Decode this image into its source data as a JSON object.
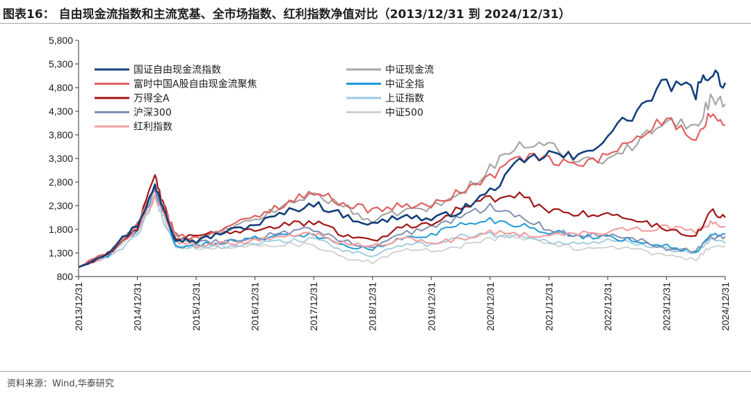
{
  "header": {
    "title": "图表16： 自由现金流指数和主流宽基、全市场指数、红利指数净值对比（2013/12/31 到 2024/12/31）"
  },
  "footer": {
    "source": "资料来源：Wind,华泰研究"
  },
  "chart_data": {
    "type": "line",
    "title": "图表16： 自由现金流指数和主流宽基、全市场指数、红利指数净值对比（2013/12/31 到 2024/12/31）",
    "xlabel": "",
    "ylabel": "",
    "ylim": [
      800,
      5800
    ],
    "yticks": [
      800,
      1300,
      1800,
      2300,
      2800,
      3300,
      3800,
      4300,
      4800,
      5300,
      5800
    ],
    "ytick_labels": [
      "800",
      "1,300",
      "1,800",
      "2,300",
      "2,800",
      "3,300",
      "3,800",
      "4,300",
      "4,800",
      "5,300",
      "5,800"
    ],
    "x_categories": [
      "2013/12/31",
      "2014/12/31",
      "2015/12/31",
      "2016/12/31",
      "2017/12/31",
      "2018/12/31",
      "2019/12/31",
      "2020/12/31",
      "2021/12/31",
      "2022/12/31",
      "2023/12/31",
      "2024/12/31"
    ],
    "x": [
      2014.0,
      2014.5,
      2015.0,
      2015.3,
      2015.45,
      2015.65,
      2016.0,
      2016.5,
      2017.0,
      2017.5,
      2018.0,
      2018.5,
      2019.0,
      2019.5,
      2020.0,
      2020.5,
      2021.0,
      2021.5,
      2022.0,
      2022.5,
      2023.0,
      2023.5,
      2024.0,
      2024.5,
      2024.75,
      2025.0
    ],
    "legend_position": "top-left",
    "series": [
      {
        "name": "国证自由现金流指数",
        "color": "#123f7a",
        "width": 2.6,
        "values": [
          1000,
          1320,
          1900,
          2700,
          2250,
          1600,
          1550,
          1750,
          1900,
          2150,
          2350,
          2100,
          1900,
          2100,
          2000,
          2200,
          2600,
          3200,
          3400,
          3300,
          3800,
          4300,
          4900,
          4700,
          5150,
          4900
        ]
      },
      {
        "name": "中证现金流",
        "color": "#a6a6a6",
        "width": 2.2,
        "values": [
          1000,
          1300,
          1900,
          2650,
          2200,
          1650,
          1550,
          1780,
          2000,
          2300,
          2550,
          2300,
          1950,
          2200,
          2250,
          2550,
          3100,
          3600,
          3550,
          3300,
          3300,
          3600,
          4200,
          3900,
          4600,
          4450
        ]
      },
      {
        "name": "富时中国A股自由现金流聚焦",
        "color": "#e06060",
        "width": 2.2,
        "values": [
          1000,
          1300,
          1900,
          2650,
          2250,
          1700,
          1600,
          1850,
          2050,
          2350,
          2600,
          2350,
          2200,
          2300,
          2300,
          2600,
          2900,
          3350,
          3250,
          3150,
          3350,
          3800,
          4150,
          3600,
          4250,
          4000
        ]
      },
      {
        "name": "中证全指",
        "color": "#1e9ad6",
        "width": 2.0,
        "values": [
          1000,
          1250,
          1800,
          2650,
          2150,
          1450,
          1450,
          1550,
          1600,
          1700,
          1680,
          1450,
          1380,
          1600,
          1700,
          1900,
          2000,
          1900,
          1750,
          1650,
          1650,
          1550,
          1450,
          1300,
          1650,
          1700
        ]
      },
      {
        "name": "万得全A",
        "color": "#a01515",
        "width": 2.2,
        "values": [
          1000,
          1280,
          1850,
          2900,
          2300,
          1600,
          1650,
          1750,
          1800,
          1900,
          1950,
          1700,
          1550,
          1850,
          1950,
          2250,
          2450,
          2500,
          2200,
          2150,
          2100,
          2000,
          1800,
          1650,
          2200,
          2050
        ]
      },
      {
        "name": "上证指数",
        "color": "#9dc9e2",
        "width": 1.8,
        "values": [
          1000,
          1200,
          1650,
          2500,
          1950,
          1450,
          1400,
          1450,
          1500,
          1550,
          1600,
          1350,
          1250,
          1450,
          1500,
          1650,
          1700,
          1650,
          1550,
          1500,
          1550,
          1500,
          1400,
          1300,
          1550,
          1500
        ]
      },
      {
        "name": "沪深300",
        "color": "#7f8fb3",
        "width": 2.0,
        "values": [
          1000,
          1250,
          1850,
          2600,
          2150,
          1600,
          1500,
          1550,
          1600,
          1750,
          1800,
          1550,
          1400,
          1700,
          1850,
          2050,
          2300,
          2100,
          1800,
          1650,
          1700,
          1600,
          1400,
          1350,
          1650,
          1650
        ]
      },
      {
        "name": "中证500",
        "color": "#cfcfcf",
        "width": 1.8,
        "values": [
          1000,
          1250,
          1750,
          2700,
          2050,
          1450,
          1400,
          1450,
          1450,
          1500,
          1450,
          1200,
          1100,
          1350,
          1350,
          1450,
          1600,
          1650,
          1500,
          1400,
          1450,
          1350,
          1250,
          1150,
          1450,
          1450
        ]
      },
      {
        "name": "红利指数",
        "color": "#f4a0a0",
        "width": 2.2,
        "values": [
          1000,
          1250,
          1800,
          2500,
          2150,
          1550,
          1450,
          1500,
          1550,
          1650,
          1700,
          1500,
          1450,
          1600,
          1500,
          1600,
          1750,
          1700,
          1650,
          1700,
          1750,
          1800,
          1850,
          1750,
          1950,
          1850
        ]
      }
    ]
  }
}
